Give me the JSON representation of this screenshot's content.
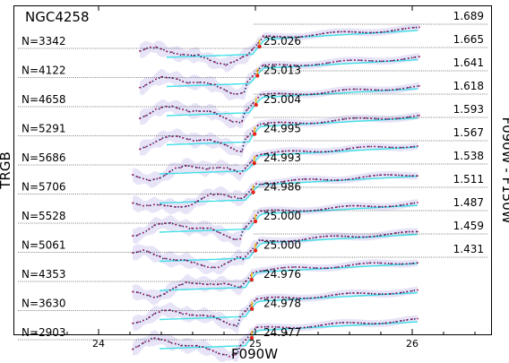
{
  "chart_data": {
    "type": "line",
    "title": "NGC4258",
    "xlabel": "F090W",
    "ylabel_left": "TRGB",
    "ylabel_right": "F090W - F150W",
    "xlim": [
      23.45,
      26.5
    ],
    "xticks": [
      24,
      25,
      26
    ],
    "tick_labels": [
      "24",
      "25",
      "26"
    ],
    "grid": false,
    "panels": [
      {
        "n_label": "N=3342",
        "trgb_label": "25.026",
        "trgb": 25.026,
        "color_label": "1.689",
        "color": 1.689
      },
      {
        "n_label": "N=4122",
        "trgb_label": "25.013",
        "trgb": 25.013,
        "color_label": "1.665",
        "color": 1.665
      },
      {
        "n_label": "N=4658",
        "trgb_label": "25.004",
        "trgb": 25.004,
        "color_label": "1.641",
        "color": 1.641
      },
      {
        "n_label": "N=5291",
        "trgb_label": "24.995",
        "trgb": 24.995,
        "color_label": "1.618",
        "color": 1.618
      },
      {
        "n_label": "N=5686",
        "trgb_label": "24.993",
        "trgb": 24.993,
        "color_label": "1.593",
        "color": 1.593
      },
      {
        "n_label": "N=5706",
        "trgb_label": "24.986",
        "trgb": 24.986,
        "color_label": "1.567",
        "color": 1.567
      },
      {
        "n_label": "N=5528",
        "trgb_label": "25.000",
        "trgb": 25.0,
        "color_label": "1.538",
        "color": 1.538
      },
      {
        "n_label": "N=5061",
        "trgb_label": "25.000",
        "trgb": 25.0,
        "color_label": "1.511",
        "color": 1.511
      },
      {
        "n_label": "N=4353",
        "trgb_label": "24.976",
        "trgb": 24.976,
        "color_label": "1.487",
        "color": 1.487
      },
      {
        "n_label": "N=3630",
        "trgb_label": "24.978",
        "trgb": 24.978,
        "color_label": "1.459",
        "color": 1.459
      },
      {
        "n_label": "N=2903",
        "trgb_label": "24.977",
        "trgb": 24.977,
        "color_label": "1.431",
        "color": 1.431
      }
    ],
    "colors": {
      "luminosity_function": "#1b1a5e",
      "lf_points": "#b0195b",
      "edge_response": "#40e0e8",
      "uncertainty_band": "#c9c3ee",
      "trgb_marker": "#e8251c",
      "trgb_tick": "#f0c020"
    }
  }
}
